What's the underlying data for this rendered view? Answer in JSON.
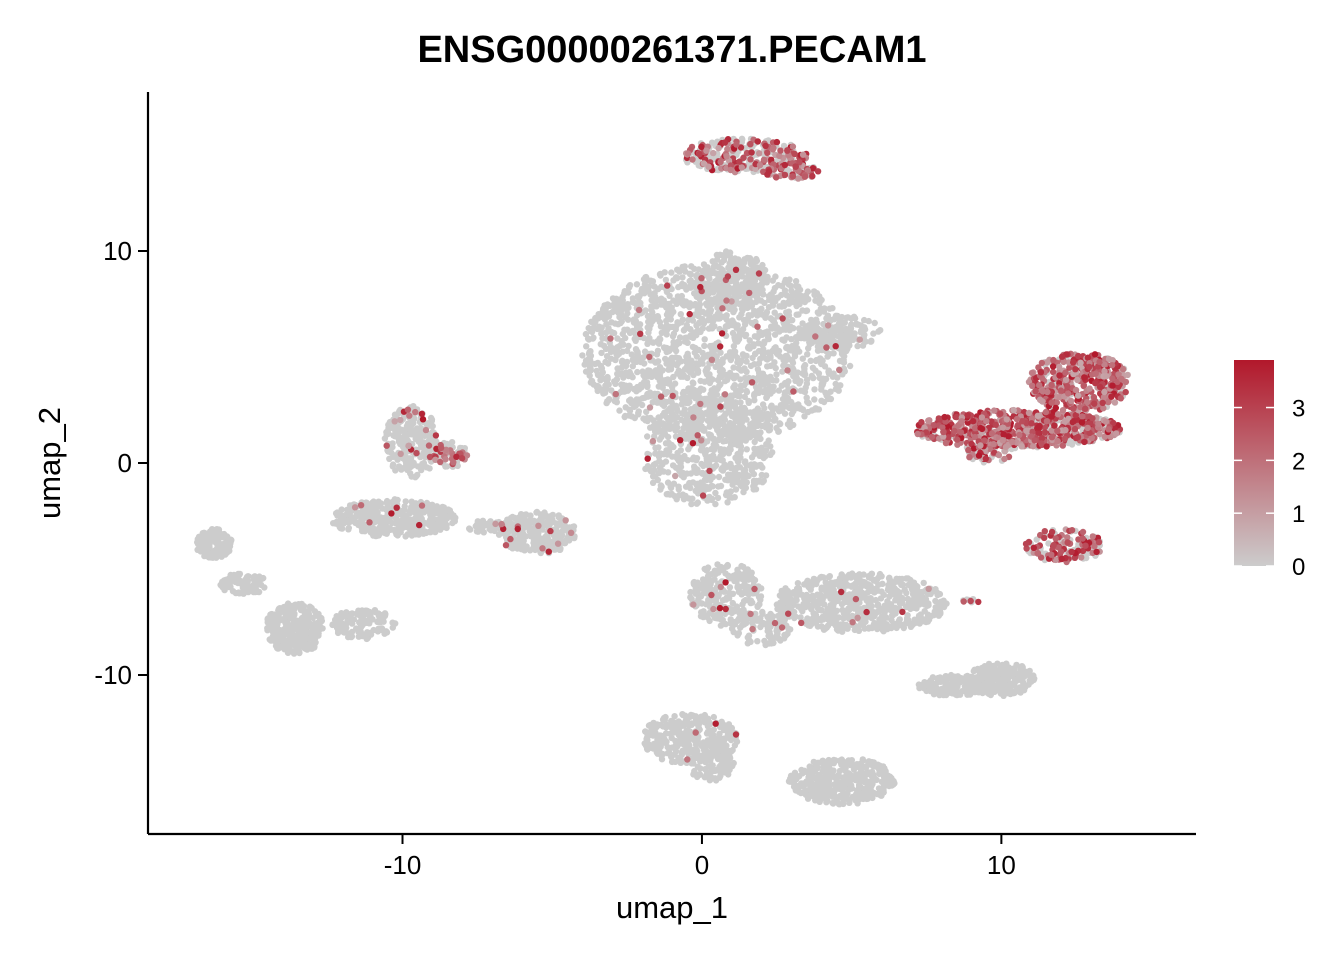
{
  "chart_data": {
    "type": "scatter",
    "title": "ENSG00000261371.PECAM1",
    "xlabel": "umap_1",
    "ylabel": "umap_2",
    "xlim": [
      -18.5,
      16.5
    ],
    "ylim": [
      -17.5,
      17.5
    ],
    "x_ticks": [
      -10,
      0,
      10
    ],
    "x_tick_labels": [
      "-10",
      "0",
      "10"
    ],
    "y_ticks": [
      -10,
      0,
      10
    ],
    "y_tick_labels": [
      "-10",
      "0",
      "10"
    ],
    "grid": false,
    "legend": {
      "position": "right",
      "type": "colorbar",
      "min": 0,
      "max": 3.9,
      "ticks": [
        0,
        1,
        2,
        3
      ],
      "tick_labels": [
        "0",
        "1",
        "2",
        "3"
      ],
      "low_color": "#cccccc",
      "high_color": "#b2182b"
    },
    "clusters": [
      {
        "cx": 0.5,
        "cy": 5.2,
        "rx": 4.5,
        "ry": 4.2,
        "n": 1700,
        "expr": 0.02
      },
      {
        "cx": 0.2,
        "cy": 0.5,
        "rx": 2.2,
        "ry": 2.6,
        "n": 500,
        "expr": 0.02
      },
      {
        "cx": 4.6,
        "cy": 6.2,
        "rx": 1.4,
        "ry": 0.8,
        "n": 140,
        "expr": 0.03
      },
      {
        "cx": 1.0,
        "cy": 8.6,
        "rx": 1.2,
        "ry": 1.4,
        "n": 200,
        "expr": 0.02
      },
      {
        "cx": 1.4,
        "cy": 14.5,
        "rx": 2.1,
        "ry": 0.8,
        "n": 260,
        "expr": 0.45
      },
      {
        "cx": 3.0,
        "cy": 13.8,
        "rx": 1.0,
        "ry": 0.4,
        "n": 80,
        "expr": 0.6
      },
      {
        "cx": 10.5,
        "cy": 1.6,
        "rx": 3.5,
        "ry": 0.9,
        "n": 650,
        "expr": 0.85
      },
      {
        "cx": 12.6,
        "cy": 3.8,
        "rx": 1.7,
        "ry": 1.4,
        "n": 450,
        "expr": 0.8
      },
      {
        "cx": 9.6,
        "cy": 0.6,
        "rx": 0.8,
        "ry": 0.6,
        "n": 60,
        "expr": 0.5
      },
      {
        "cx": 12.1,
        "cy": -3.9,
        "rx": 1.3,
        "ry": 0.8,
        "n": 140,
        "expr": 0.7
      },
      {
        "cx": 9.0,
        "cy": -6.5,
        "rx": 0.3,
        "ry": 0.1,
        "n": 8,
        "expr": 0.6
      },
      {
        "cx": -10.3,
        "cy": -2.6,
        "rx": 2.1,
        "ry": 0.9,
        "n": 420,
        "expr": 0.02
      },
      {
        "cx": -9.7,
        "cy": 1.0,
        "rx": 0.9,
        "ry": 1.7,
        "n": 260,
        "expr": 0.08
      },
      {
        "cx": -8.4,
        "cy": 0.4,
        "rx": 0.6,
        "ry": 0.6,
        "n": 60,
        "expr": 0.3
      },
      {
        "cx": -5.5,
        "cy": -3.3,
        "rx": 1.3,
        "ry": 1.0,
        "n": 260,
        "expr": 0.05
      },
      {
        "cx": -7.0,
        "cy": -3.0,
        "rx": 0.9,
        "ry": 0.3,
        "n": 60,
        "expr": 0.02
      },
      {
        "cx": -16.3,
        "cy": -3.8,
        "rx": 0.6,
        "ry": 0.7,
        "n": 120,
        "expr": 0.0
      },
      {
        "cx": -15.3,
        "cy": -5.7,
        "rx": 0.8,
        "ry": 0.5,
        "n": 90,
        "expr": 0.0
      },
      {
        "cx": -13.6,
        "cy": -7.8,
        "rx": 1.0,
        "ry": 1.2,
        "n": 260,
        "expr": 0.0
      },
      {
        "cx": -11.3,
        "cy": -7.6,
        "rx": 1.1,
        "ry": 0.7,
        "n": 120,
        "expr": 0.0
      },
      {
        "cx": 5.3,
        "cy": -6.6,
        "rx": 2.9,
        "ry": 1.4,
        "n": 600,
        "expr": 0.01
      },
      {
        "cx": 0.8,
        "cy": -6.2,
        "rx": 1.2,
        "ry": 1.5,
        "n": 240,
        "expr": 0.03
      },
      {
        "cx": 2.0,
        "cy": -7.8,
        "rx": 1.0,
        "ry": 0.8,
        "n": 90,
        "expr": 0.03
      },
      {
        "cx": -0.4,
        "cy": -13.0,
        "rx": 1.6,
        "ry": 1.2,
        "n": 320,
        "expr": 0.01
      },
      {
        "cx": 0.3,
        "cy": -14.2,
        "rx": 0.8,
        "ry": 0.8,
        "n": 80,
        "expr": 0.0
      },
      {
        "cx": 4.7,
        "cy": -15.0,
        "rx": 1.8,
        "ry": 1.1,
        "n": 380,
        "expr": 0.0
      },
      {
        "cx": 8.5,
        "cy": -10.5,
        "rx": 1.3,
        "ry": 0.5,
        "n": 160,
        "expr": 0.0
      },
      {
        "cx": 10.0,
        "cy": -10.2,
        "rx": 1.1,
        "ry": 0.8,
        "n": 200,
        "expr": 0.0
      }
    ]
  }
}
